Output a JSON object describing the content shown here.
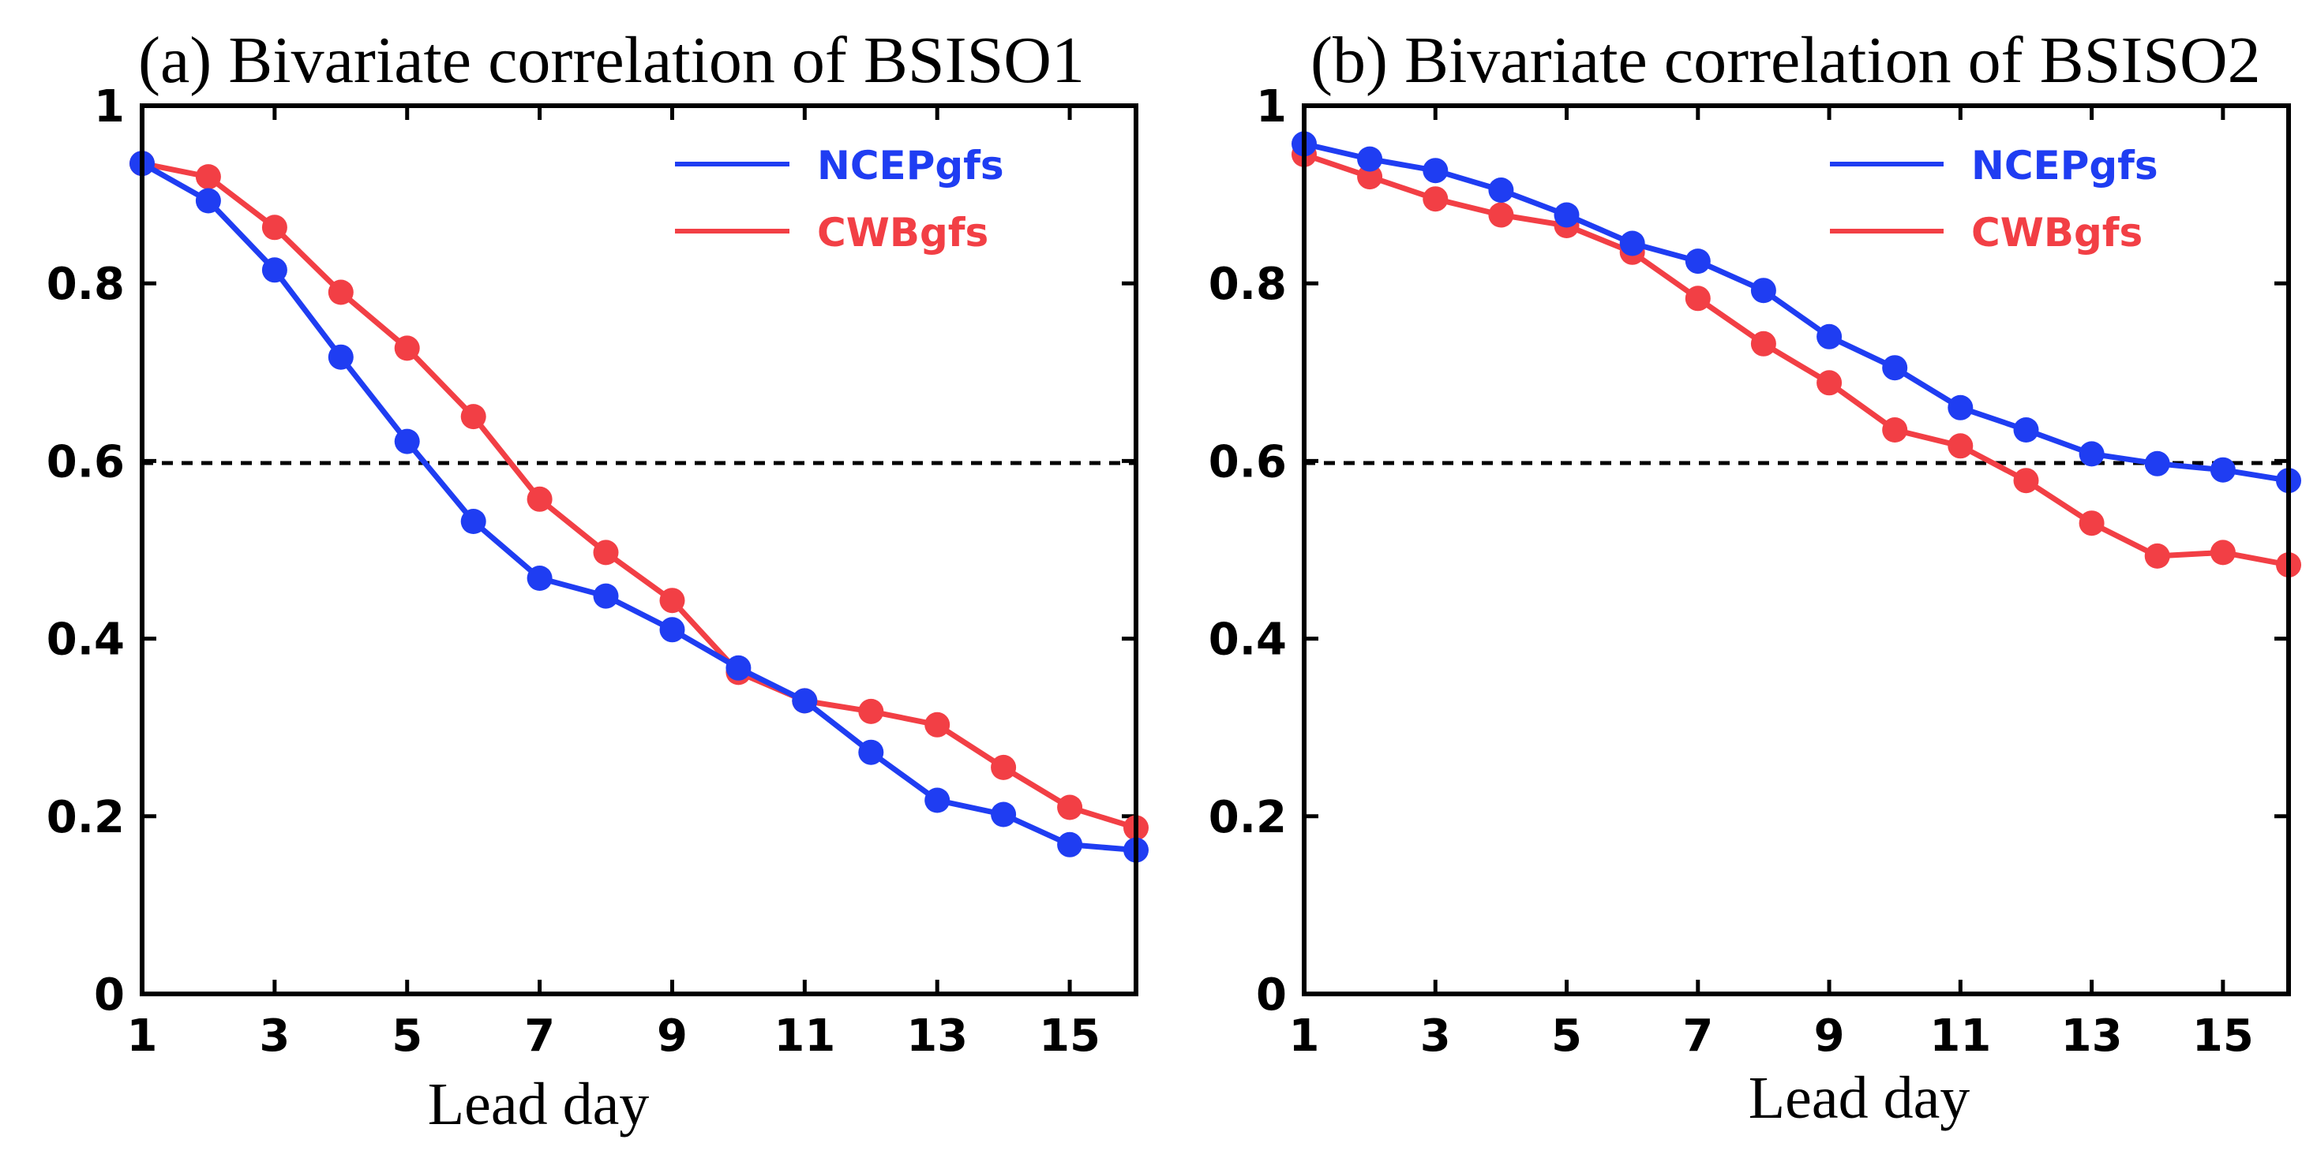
{
  "colors": {
    "ncep": "#1f3df2",
    "cwb": "#f23f45",
    "axis": "#000000"
  },
  "chart_data": [
    {
      "type": "line",
      "title": "(a) Bivariate correlation of BSISO1",
      "xlabel": "Lead day",
      "ylabel": "",
      "xlim": [
        1,
        16
      ],
      "ylim": [
        0,
        1
      ],
      "xticks": [
        "1",
        "3",
        "5",
        "7",
        "9",
        "11",
        "13",
        "15"
      ],
      "yticks": [
        "0",
        "0.2",
        "0.4",
        "0.6",
        "0.8",
        "1"
      ],
      "reference_line": {
        "y": 0.6,
        "style": "dashed"
      },
      "legend": "top-right",
      "x": [
        1,
        2,
        3,
        4,
        5,
        6,
        7,
        8,
        9,
        10,
        11,
        12,
        13,
        14,
        15,
        16
      ],
      "series": [
        {
          "name": "NCEPgfs",
          "color_key": "ncep",
          "values": [
            0.935,
            0.893,
            0.815,
            0.717,
            0.622,
            0.532,
            0.468,
            0.448,
            0.41,
            0.367,
            0.33,
            0.272,
            0.218,
            0.202,
            0.168,
            0.162
          ]
        },
        {
          "name": "CWBgfs",
          "color_key": "cwb",
          "values": [
            0.935,
            0.92,
            0.863,
            0.79,
            0.727,
            0.65,
            0.557,
            0.497,
            0.443,
            0.362,
            0.33,
            0.318,
            0.303,
            0.255,
            0.21,
            0.187
          ]
        }
      ]
    },
    {
      "type": "line",
      "title": "(b) Bivariate correlation of BSISO2",
      "xlabel": "Lead day",
      "ylabel": "",
      "xlim": [
        1,
        16
      ],
      "ylim": [
        0,
        1
      ],
      "xticks": [
        "1",
        "3",
        "5",
        "7",
        "9",
        "11",
        "13",
        "15"
      ],
      "yticks": [
        "0",
        "0.2",
        "0.4",
        "0.6",
        "0.8",
        "1"
      ],
      "reference_line": {
        "y": 0.6,
        "style": "dashed"
      },
      "legend": "top-right",
      "x": [
        1,
        2,
        3,
        4,
        5,
        6,
        7,
        8,
        9,
        10,
        11,
        12,
        13,
        14,
        15,
        16
      ],
      "series": [
        {
          "name": "NCEPgfs",
          "color_key": "ncep",
          "values": [
            0.957,
            0.94,
            0.927,
            0.905,
            0.877,
            0.845,
            0.825,
            0.792,
            0.74,
            0.705,
            0.66,
            0.635,
            0.608,
            0.597,
            0.59,
            0.578
          ]
        },
        {
          "name": "CWBgfs",
          "color_key": "cwb",
          "values": [
            0.945,
            0.92,
            0.895,
            0.877,
            0.865,
            0.835,
            0.783,
            0.732,
            0.688,
            0.635,
            0.617,
            0.578,
            0.53,
            0.493,
            0.497,
            0.483
          ]
        }
      ]
    }
  ]
}
